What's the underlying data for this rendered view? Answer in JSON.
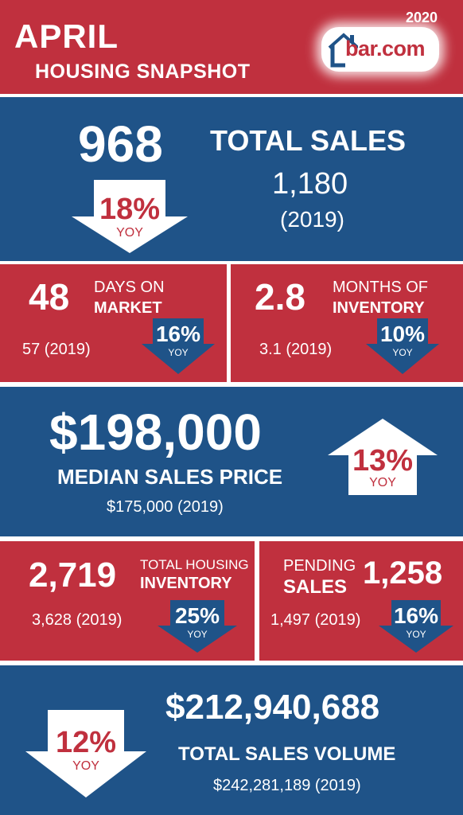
{
  "header": {
    "month": "APRIL",
    "subtitle": "HOUSING SNAPSHOT",
    "year": "2020",
    "logo_text": "bar.com"
  },
  "total_sales": {
    "value": "968",
    "label": "TOTAL SALES",
    "prior_value": "1,180",
    "prior_year": "(2019)",
    "change": "18%",
    "change_label": "YOY",
    "direction": "down"
  },
  "days_on_market": {
    "value": "48",
    "label_line1": "DAYS ON",
    "label_line2": "MARKET",
    "prior": "57 (2019)",
    "change": "16%",
    "change_label": "YOY",
    "direction": "down"
  },
  "months_inventory": {
    "value": "2.8",
    "label_line1": "MONTHS OF",
    "label_line2": "INVENTORY",
    "prior": "3.1 (2019)",
    "change": "10%",
    "change_label": "YOY",
    "direction": "down"
  },
  "median_price": {
    "value": "$198,000",
    "label": "MEDIAN SALES PRICE",
    "prior": "$175,000 (2019)",
    "change": "13%",
    "change_label": "YOY",
    "direction": "up"
  },
  "housing_inventory": {
    "value": "2,719",
    "label_line1": "TOTAL HOUSING",
    "label_line2": "INVENTORY",
    "prior": "3,628 (2019)",
    "change": "25%",
    "change_label": "YOY",
    "direction": "down"
  },
  "pending_sales": {
    "value": "1,258",
    "label_line1": "PENDING",
    "label_line2": "SALES",
    "prior": "1,497 (2019)",
    "change": "16%",
    "change_label": "YOY",
    "direction": "down"
  },
  "sales_volume": {
    "value": "$212,940,688",
    "label": "TOTAL SALES VOLUME",
    "prior": "$242,281,189 (2019)",
    "change": "12%",
    "change_label": "YOY",
    "direction": "down"
  },
  "colors": {
    "red": "#c0303e",
    "blue": "#1f5388",
    "white": "#ffffff",
    "arrow_blue": "#1f5388"
  }
}
